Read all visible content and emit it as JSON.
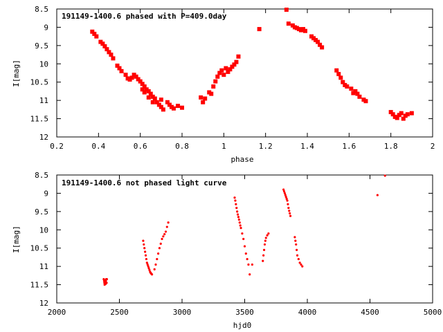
{
  "chart_data": [
    {
      "type": "scatter",
      "title": "191149-1400.6 phased with P=409.0day",
      "xlabel": "phase",
      "ylabel": "I[mag]",
      "xlim": [
        0.2,
        2.0
      ],
      "ylim": [
        8.5,
        12
      ],
      "y_inverted": true,
      "x_ticks": [
        0.2,
        0.4,
        0.6,
        0.8,
        1.0,
        1.2,
        1.4,
        1.6,
        1.8,
        2.0
      ],
      "x_tick_labels": [
        "0.2",
        "0.4",
        "0.6",
        "0.8",
        "1",
        "1.2",
        "1.4",
        "1.6",
        "1.8",
        "2"
      ],
      "y_ticks": [
        8.5,
        9,
        9.5,
        10,
        10.5,
        11,
        11.5,
        12
      ],
      "y_tick_labels": [
        "8.5",
        "9",
        "9.5",
        "10",
        "10.5",
        "11",
        "11.5",
        "12"
      ],
      "grid": false,
      "marker_color": "#ff0000",
      "marker_size": "large",
      "series": [
        {
          "x": [
            0.37,
            0.38,
            0.39,
            0.41,
            0.42,
            0.43,
            0.44,
            0.45,
            0.46,
            0.47,
            0.49,
            0.5,
            0.51,
            0.53,
            0.54,
            0.55,
            0.56,
            0.57,
            0.58,
            0.59,
            0.6,
            0.61,
            0.62,
            0.63,
            0.64,
            0.65,
            0.66,
            0.67,
            0.68,
            0.69,
            0.7,
            0.71,
            0.61,
            0.62,
            0.64,
            0.66,
            0.7,
            0.73,
            0.74,
            0.75,
            0.76,
            0.78,
            0.8,
            0.89,
            0.9,
            0.91,
            0.93,
            0.94,
            0.95,
            0.96,
            0.97,
            0.98,
            0.99,
            1.0,
            1.01,
            1.02,
            1.03,
            1.04,
            1.05,
            1.06,
            1.07,
            1.17,
            1.3,
            1.31,
            1.33,
            1.34,
            1.35,
            1.36,
            1.37,
            1.38,
            1.39,
            1.42,
            1.43,
            1.44,
            1.45,
            1.46,
            1.47,
            1.54,
            1.55,
            1.56,
            1.57,
            1.58,
            1.59,
            1.61,
            1.62,
            1.63,
            1.64,
            1.65,
            1.67,
            1.68,
            1.8,
            1.81,
            1.82,
            1.83,
            1.84,
            1.85,
            1.86,
            1.87,
            1.88,
            1.9
          ],
          "y": [
            9.12,
            9.18,
            9.25,
            9.4,
            9.45,
            9.52,
            9.6,
            9.68,
            9.75,
            9.85,
            10.05,
            10.12,
            10.2,
            10.3,
            10.4,
            10.43,
            10.38,
            10.3,
            10.35,
            10.42,
            10.48,
            10.55,
            10.62,
            10.7,
            10.75,
            10.82,
            10.9,
            10.95,
            11.05,
            11.12,
            11.18,
            11.25,
            10.7,
            10.78,
            10.92,
            11.05,
            10.98,
            11.05,
            11.12,
            11.18,
            11.22,
            11.15,
            11.2,
            10.92,
            11.05,
            10.95,
            10.78,
            10.82,
            10.62,
            10.48,
            10.35,
            10.25,
            10.18,
            10.3,
            10.12,
            10.22,
            10.15,
            10.08,
            10.02,
            9.95,
            9.8,
            9.05,
            8.52,
            8.9,
            8.95,
            9.0,
            9.02,
            9.05,
            9.08,
            9.05,
            9.1,
            9.25,
            9.3,
            9.35,
            9.4,
            9.48,
            9.55,
            10.18,
            10.28,
            10.38,
            10.5,
            10.58,
            10.62,
            10.68,
            10.8,
            10.75,
            10.82,
            10.9,
            10.98,
            11.02,
            11.32,
            11.38,
            11.45,
            11.48,
            11.4,
            11.35,
            11.5,
            11.42,
            11.38,
            11.35
          ]
        }
      ]
    },
    {
      "type": "scatter",
      "title": "191149-1400.6 not phased light curve",
      "xlabel": "hjd0",
      "ylabel": "I[mag]",
      "xlim": [
        2000,
        5000
      ],
      "ylim": [
        8.5,
        12
      ],
      "y_inverted": true,
      "x_ticks": [
        2000,
        2500,
        3000,
        3500,
        4000,
        4500,
        5000
      ],
      "x_tick_labels": [
        "2000",
        "2500",
        "3000",
        "3500",
        "4000",
        "4500",
        "5000"
      ],
      "y_ticks": [
        8.5,
        9,
        9.5,
        10,
        10.5,
        11,
        11.5,
        12
      ],
      "y_tick_labels": [
        "8.5",
        "9",
        "9.5",
        "10",
        "10.5",
        "11",
        "11.5",
        "12"
      ],
      "grid": false,
      "marker_color": "#ff0000",
      "marker_size": "small",
      "series": [
        {
          "x": [
            2375,
            2378,
            2380,
            2382,
            2384,
            2386,
            2388,
            2390,
            2392,
            2395,
            2398,
            2400,
            2690,
            2695,
            2700,
            2705,
            2710,
            2715,
            2720,
            2725,
            2730,
            2735,
            2740,
            2745,
            2750,
            2755,
            2760,
            2780,
            2790,
            2800,
            2810,
            2820,
            2830,
            2840,
            2850,
            2860,
            2870,
            2880,
            2890,
            3420,
            3425,
            3430,
            3435,
            3440,
            3445,
            3450,
            3455,
            3460,
            3465,
            3470,
            3480,
            3490,
            3500,
            3510,
            3520,
            3530,
            3540,
            3560,
            3645,
            3650,
            3655,
            3660,
            3665,
            3670,
            3680,
            3690,
            3810,
            3815,
            3820,
            3825,
            3830,
            3835,
            3840,
            3845,
            3850,
            3855,
            3860,
            3865,
            3900,
            3905,
            3910,
            3915,
            3920,
            3930,
            3940,
            3950,
            3960,
            4560,
            4620
          ],
          "y": [
            11.35,
            11.4,
            11.45,
            11.5,
            11.42,
            11.38,
            11.45,
            11.48,
            11.4,
            11.35,
            11.45,
            11.35,
            10.3,
            10.4,
            10.5,
            10.6,
            10.7,
            10.8,
            10.9,
            10.95,
            11.0,
            11.05,
            11.1,
            11.15,
            11.18,
            11.2,
            11.22,
            11.08,
            10.95,
            10.8,
            10.65,
            10.5,
            10.38,
            10.25,
            10.18,
            10.12,
            10.05,
            9.92,
            9.8,
            9.12,
            9.2,
            9.3,
            9.4,
            9.5,
            9.58,
            9.65,
            9.72,
            9.8,
            9.88,
            9.95,
            10.1,
            10.25,
            10.45,
            10.65,
            10.8,
            10.95,
            11.22,
            10.95,
            10.85,
            10.7,
            10.55,
            10.4,
            10.3,
            10.22,
            10.15,
            10.1,
            8.9,
            8.95,
            9.0,
            9.05,
            9.1,
            9.15,
            9.2,
            9.3,
            9.4,
            9.48,
            9.55,
            9.62,
            10.2,
            10.3,
            10.4,
            10.55,
            10.7,
            10.8,
            10.9,
            10.95,
            11.0,
            9.05,
            8.52
          ]
        }
      ]
    }
  ]
}
